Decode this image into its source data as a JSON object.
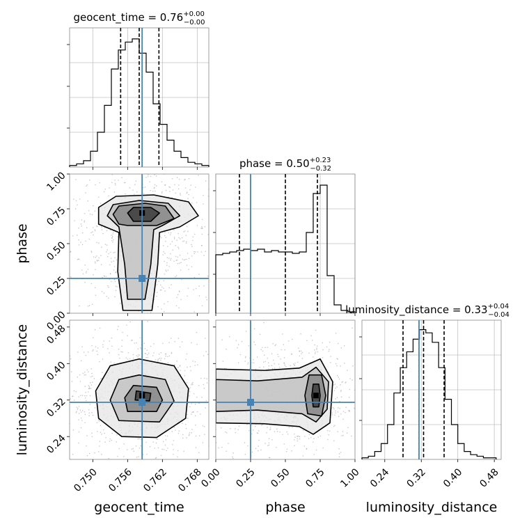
{
  "chart_data": {
    "type": "corner",
    "colors": {
      "truth": "#4682b4",
      "line": "#000000",
      "grid": "#c0c0c0",
      "scatter": "#9a9a9a"
    },
    "parameters": [
      "geocent_time",
      "phase",
      "luminosity_distance"
    ],
    "axis_labels": {
      "geocent_time": "geocent_time",
      "phase": "phase",
      "luminosity_distance": "luminosity_distance"
    },
    "ticks": {
      "geocent_time": [
        "0.750",
        "0.756",
        "0.762",
        "0.768"
      ],
      "phase": [
        "0.00",
        "0.25",
        "0.50",
        "0.75",
        "1.00"
      ],
      "luminosity_distance": [
        "0.24",
        "0.32",
        "0.40",
        "0.48"
      ]
    },
    "ranges": {
      "geocent_time": [
        0.746,
        0.77
      ],
      "phase": [
        0.0,
        1.0
      ],
      "luminosity_distance": [
        0.19,
        0.495
      ]
    },
    "truths": {
      "geocent_time": 0.7585,
      "phase": 0.25,
      "luminosity_distance": 0.315
    },
    "titles": {
      "geocent_time": {
        "name": "geocent_time",
        "median": "0.76",
        "plus": "+0.00",
        "minus": "−0.00"
      },
      "phase": {
        "name": "phase",
        "median": "0.50",
        "plus": "+0.23",
        "minus": "−0.32"
      },
      "luminosity_distance": {
        "name": "luminosity_distance",
        "median": "0.33",
        "plus": "+0.04",
        "minus": "−0.04"
      }
    },
    "quantiles": {
      "geocent_time": [
        0.7548,
        0.758,
        0.7614
      ],
      "phase": [
        0.17,
        0.5,
        0.73
      ],
      "luminosity_distance": [
        0.28,
        0.325,
        0.37
      ]
    },
    "histograms": {
      "geocent_time": {
        "edges": [
          0.746,
          0.7472,
          0.7484,
          0.7496,
          0.7508,
          0.752,
          0.7532,
          0.7544,
          0.7556,
          0.7568,
          0.758,
          0.7592,
          0.7604,
          0.7616,
          0.7628,
          0.764,
          0.7652,
          0.7664,
          0.7676,
          0.7688,
          0.77
        ],
        "counts": [
          1,
          2,
          4,
          10,
          22,
          39,
          62,
          74,
          79,
          81,
          72,
          60,
          40,
          27,
          17,
          10,
          6,
          3,
          2,
          1
        ],
        "ymax": 88
      },
      "phase": {
        "edges": [
          0.0,
          0.05,
          0.1,
          0.15,
          0.2,
          0.25,
          0.3,
          0.35,
          0.4,
          0.45,
          0.5,
          0.55,
          0.6,
          0.65,
          0.7,
          0.75,
          0.8,
          0.85,
          0.9,
          0.95,
          1.0
        ],
        "counts": [
          42,
          43,
          44,
          45,
          46,
          45,
          46,
          44,
          45,
          44,
          44,
          43,
          44,
          58,
          86,
          92,
          27,
          6,
          2,
          1
        ],
        "ymax": 100
      },
      "luminosity_distance": {
        "edges": [
          0.19,
          0.204,
          0.218,
          0.232,
          0.246,
          0.26,
          0.274,
          0.288,
          0.302,
          0.316,
          0.33,
          0.344,
          0.358,
          0.372,
          0.386,
          0.4,
          0.414,
          0.428,
          0.442,
          0.456,
          0.47,
          0.484
        ],
        "counts": [
          1,
          2,
          5,
          10,
          22,
          42,
          58,
          68,
          76,
          82,
          80,
          74,
          58,
          38,
          22,
          10,
          5,
          3,
          2,
          1,
          1
        ],
        "ymax": 88
      }
    },
    "contours_2d": {
      "phase_vs_geocent_time": {
        "mode_x": 0.7585,
        "mode_y": 0.72,
        "levels": [
          [
            [
              0.757,
              0.66
            ],
            [
              0.76,
              0.66
            ],
            [
              0.7615,
              0.72
            ],
            [
              0.76,
              0.76
            ],
            [
              0.757,
              0.76
            ],
            [
              0.756,
              0.72
            ]
          ],
          [
            [
              0.7545,
              0.64
            ],
            [
              0.756,
              0.63
            ],
            [
              0.761,
              0.63
            ],
            [
              0.764,
              0.68
            ],
            [
              0.7625,
              0.77
            ],
            [
              0.759,
              0.79
            ],
            [
              0.7545,
              0.77
            ],
            [
              0.7535,
              0.71
            ]
          ],
          [
            [
              0.756,
              0.1
            ],
            [
              0.759,
              0.1
            ],
            [
              0.76,
              0.35
            ],
            [
              0.7605,
              0.6
            ],
            [
              0.762,
              0.63
            ],
            [
              0.765,
              0.7
            ],
            [
              0.763,
              0.79
            ],
            [
              0.758,
              0.81
            ],
            [
              0.7535,
              0.78
            ],
            [
              0.7525,
              0.7
            ],
            [
              0.7545,
              0.62
            ],
            [
              0.7555,
              0.35
            ]
          ],
          [
            [
              0.7552,
              0.02
            ],
            [
              0.7602,
              0.02
            ],
            [
              0.7612,
              0.35
            ],
            [
              0.7615,
              0.58
            ],
            [
              0.765,
              0.62
            ],
            [
              0.7682,
              0.7
            ],
            [
              0.7665,
              0.8
            ],
            [
              0.7605,
              0.85
            ],
            [
              0.754,
              0.84
            ],
            [
              0.751,
              0.76
            ],
            [
              0.751,
              0.64
            ],
            [
              0.7545,
              0.58
            ],
            [
              0.7543,
              0.3
            ]
          ]
        ]
      },
      "luminosity_distance_vs_geocent_time": {
        "mode_x": 0.7585,
        "mode_y": 0.33,
        "levels": [
          [
            [
              0.7573,
              0.32
            ],
            [
              0.7598,
              0.318
            ],
            [
              0.76,
              0.335
            ],
            [
              0.7575,
              0.34
            ]
          ],
          [
            [
              0.756,
              0.295
            ],
            [
              0.761,
              0.295
            ],
            [
              0.762,
              0.32
            ],
            [
              0.761,
              0.348
            ],
            [
              0.757,
              0.352
            ],
            [
              0.7555,
              0.325
            ]
          ],
          [
            [
              0.7545,
              0.275
            ],
            [
              0.7615,
              0.272
            ],
            [
              0.764,
              0.318
            ],
            [
              0.7625,
              0.365
            ],
            [
              0.758,
              0.375
            ],
            [
              0.7545,
              0.365
            ],
            [
              0.753,
              0.32
            ]
          ],
          [
            [
              0.755,
              0.24
            ],
            [
              0.761,
              0.238
            ],
            [
              0.766,
              0.28
            ],
            [
              0.7665,
              0.345
            ],
            [
              0.764,
              0.395
            ],
            [
              0.758,
              0.41
            ],
            [
              0.753,
              0.395
            ],
            [
              0.7505,
              0.34
            ],
            [
              0.751,
              0.28
            ]
          ]
        ]
      },
      "luminosity_distance_vs_phase": {
        "mode_x": 0.72,
        "mode_y": 0.33,
        "levels": [
          [
            [
              0.7,
              0.305
            ],
            [
              0.74,
              0.305
            ],
            [
              0.75,
              0.33
            ],
            [
              0.74,
              0.355
            ],
            [
              0.7,
              0.355
            ],
            [
              0.69,
              0.33
            ]
          ],
          [
            [
              0.66,
              0.29
            ],
            [
              0.76,
              0.285
            ],
            [
              0.79,
              0.33
            ],
            [
              0.76,
              0.375
            ],
            [
              0.67,
              0.375
            ],
            [
              0.64,
              0.33
            ]
          ],
          [
            [
              0.0,
              0.295
            ],
            [
              0.3,
              0.298
            ],
            [
              0.62,
              0.29
            ],
            [
              0.72,
              0.272
            ],
            [
              0.8,
              0.3
            ],
            [
              0.81,
              0.36
            ],
            [
              0.72,
              0.392
            ],
            [
              0.62,
              0.37
            ],
            [
              0.3,
              0.362
            ],
            [
              0.0,
              0.365
            ]
          ],
          [
            [
              0.0,
              0.27
            ],
            [
              0.35,
              0.268
            ],
            [
              0.6,
              0.262
            ],
            [
              0.7,
              0.245
            ],
            [
              0.82,
              0.27
            ],
            [
              0.84,
              0.36
            ],
            [
              0.75,
              0.41
            ],
            [
              0.6,
              0.39
            ],
            [
              0.35,
              0.385
            ],
            [
              0.0,
              0.388
            ]
          ]
        ]
      }
    }
  }
}
